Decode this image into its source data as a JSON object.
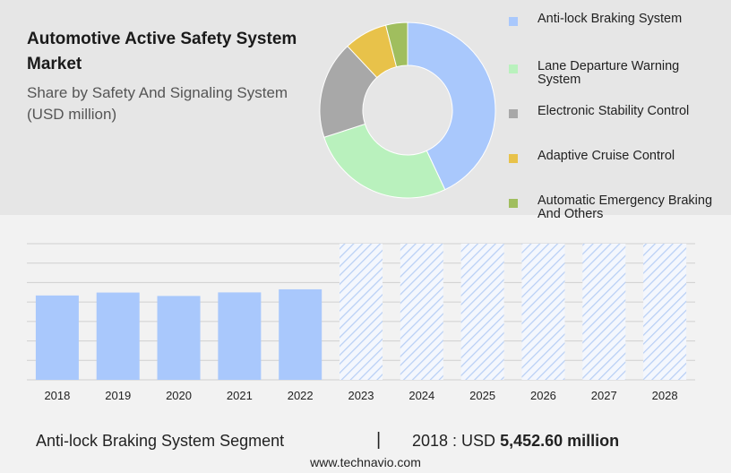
{
  "title": "Automotive Active Safety System Market",
  "subtitle_line1": "Share by Safety And Signaling System",
  "subtitle_line2": "(USD million)",
  "footer": {
    "segment": "Anti-lock Braking System Segment",
    "separator": "|",
    "year_label": "2018 : USD",
    "value": "5,452.60 million"
  },
  "source": "www.technavio.com",
  "colors": {
    "actual_bar": "#a9c8fc",
    "forecast_hatch": "#b8cff5",
    "grid": "#d0d0d0",
    "top_band": "#e6e6e6",
    "bottom_band": "#f2f2f2"
  },
  "chart_data": [
    {
      "type": "pie",
      "donut": true,
      "title": "Share by Safety And Signaling System",
      "categories": [
        "Anti-lock Braking System",
        "Lane Departure Warning System",
        "Electronic Stability Control",
        "Adaptive Cruise Control",
        "Automatic Emergency Braking And Others"
      ],
      "values": [
        43,
        27,
        18,
        8,
        4
      ],
      "colors": [
        "#a9c8fc",
        "#b9f1bd",
        "#a8a8a8",
        "#e8c24a",
        "#a0be5e"
      ],
      "legend_position": "right"
    },
    {
      "type": "bar",
      "categories": [
        "2018",
        "2019",
        "2020",
        "2021",
        "2022",
        "2023",
        "2024",
        "2025",
        "2026",
        "2027",
        "2028"
      ],
      "values": [
        5452.6,
        5640,
        5420,
        5650,
        5850,
        null,
        null,
        null,
        null,
        null,
        null
      ],
      "forecast": [
        false,
        false,
        false,
        false,
        false,
        true,
        true,
        true,
        true,
        true,
        true
      ],
      "ylim": [
        0,
        8800
      ],
      "grid": true,
      "xlabel": "",
      "ylabel": ""
    }
  ]
}
